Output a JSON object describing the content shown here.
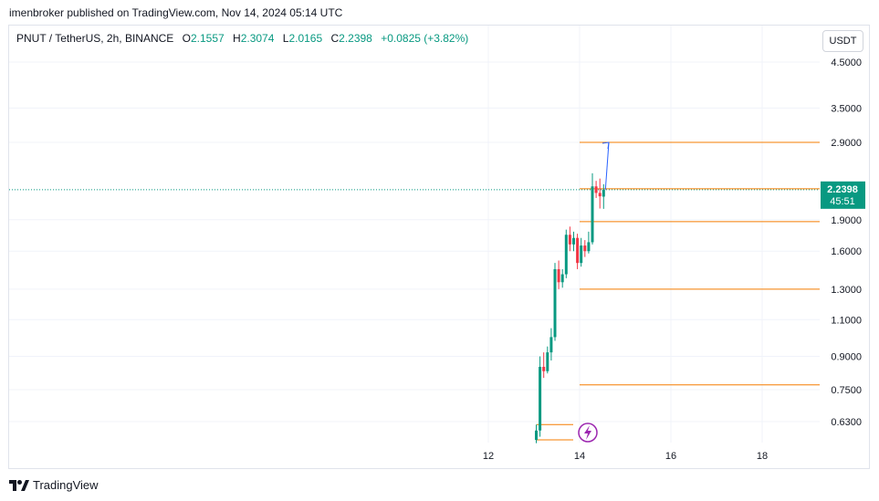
{
  "header": {
    "published_line": "imenbroker published on TradingView.com, Nov 14, 2024 05:14 UTC"
  },
  "legend": {
    "symbol": "PNUT / TetherUS, 2h, BINANCE",
    "open_label": "O",
    "open": "2.1557",
    "high_label": "H",
    "high": "2.3074",
    "low_label": "L",
    "low": "2.0165",
    "close_label": "C",
    "close": "2.2398",
    "change": "+0.0825 (+3.82%)"
  },
  "currency_button": "USDT",
  "price_badge": {
    "price": "2.2398",
    "countdown": "45:51"
  },
  "footer": {
    "brand": "TradingView"
  },
  "colors": {
    "up": "#089981",
    "down": "#f23645",
    "level": "#f57c00",
    "arrow": "#2962ff",
    "grid": "#f0f3fa",
    "lightning": "#9c27b0"
  },
  "icons": {
    "lightning": "lightning-icon",
    "logo": "tradingview-logo-icon"
  },
  "chart_data": {
    "type": "candlestick",
    "y_axis_labels": [
      "4.5000",
      "3.5000",
      "2.9000",
      "1.9000",
      "1.6000",
      "1.3000",
      "1.1000",
      "0.9000",
      "0.7500",
      "0.6300"
    ],
    "x_axis_labels": [
      "12",
      "14",
      "16",
      "18"
    ],
    "last_price": 2.2398,
    "horizontal_levels": [
      2.9,
      2.25,
      1.88,
      1.3,
      0.77,
      0.62,
      0.57
    ],
    "candles": [
      {
        "o": 0.57,
        "h": 0.62,
        "l": 0.56,
        "c": 0.6
      },
      {
        "o": 0.6,
        "h": 0.9,
        "l": 0.58,
        "c": 0.85
      },
      {
        "o": 0.85,
        "h": 0.92,
        "l": 0.8,
        "c": 0.83
      },
      {
        "o": 0.83,
        "h": 0.95,
        "l": 0.82,
        "c": 0.92
      },
      {
        "o": 0.92,
        "h": 1.05,
        "l": 0.88,
        "c": 1.0
      },
      {
        "o": 1.0,
        "h": 1.5,
        "l": 0.98,
        "c": 1.45
      },
      {
        "o": 1.45,
        "h": 1.52,
        "l": 1.3,
        "c": 1.35
      },
      {
        "o": 1.35,
        "h": 1.45,
        "l": 1.31,
        "c": 1.41
      },
      {
        "o": 1.41,
        "h": 1.8,
        "l": 1.38,
        "c": 1.75
      },
      {
        "o": 1.75,
        "h": 1.83,
        "l": 1.6,
        "c": 1.66
      },
      {
        "o": 1.66,
        "h": 1.78,
        "l": 1.6,
        "c": 1.72
      },
      {
        "o": 1.72,
        "h": 1.76,
        "l": 1.45,
        "c": 1.5
      },
      {
        "o": 1.5,
        "h": 1.72,
        "l": 1.47,
        "c": 1.65
      },
      {
        "o": 1.65,
        "h": 1.7,
        "l": 1.55,
        "c": 1.6
      },
      {
        "o": 1.6,
        "h": 1.78,
        "l": 1.58,
        "c": 1.68
      },
      {
        "o": 1.68,
        "h": 2.45,
        "l": 1.66,
        "c": 2.28
      },
      {
        "o": 2.28,
        "h": 2.35,
        "l": 2.14,
        "c": 2.2
      },
      {
        "o": 2.2,
        "h": 2.38,
        "l": 2.02,
        "c": 2.16
      },
      {
        "o": 2.1557,
        "h": 2.3074,
        "l": 2.0165,
        "c": 2.2398
      }
    ],
    "projection_arrow": {
      "from": 2.24,
      "to": 2.9
    }
  }
}
